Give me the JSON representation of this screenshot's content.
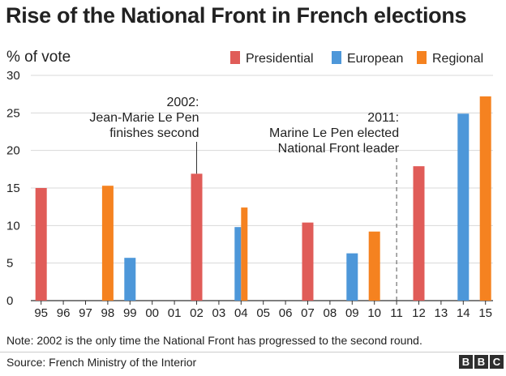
{
  "title": "Rise of the National Front in French elections",
  "note": "Note: 2002 is the only time the National Front has progressed to the second round.",
  "source": "Source: French Ministry of the Interior",
  "logo": [
    "B",
    "B",
    "C"
  ],
  "colors": {
    "Presidential": "#e05c58",
    "European": "#4d97d9",
    "Regional": "#f58220",
    "gridline": "#d8d8d8",
    "text": "#222222"
  },
  "chart_data": {
    "type": "bar",
    "ylabel": "% of vote",
    "ylim": [
      0,
      30
    ],
    "yticks": [
      0,
      5,
      10,
      15,
      20,
      25,
      30
    ],
    "grid": true,
    "legend_position": "top-right",
    "categories": [
      "95",
      "96",
      "97",
      "98",
      "99",
      "00",
      "01",
      "02",
      "03",
      "04",
      "05",
      "06",
      "07",
      "08",
      "09",
      "10",
      "11",
      "12",
      "13",
      "14",
      "15"
    ],
    "series": [
      {
        "name": "Presidential",
        "points": [
          {
            "x": "95",
            "value": 15.0
          },
          {
            "x": "02",
            "value": 16.9
          },
          {
            "x": "07",
            "value": 10.4
          },
          {
            "x": "12",
            "value": 17.9
          }
        ]
      },
      {
        "name": "European",
        "points": [
          {
            "x": "99",
            "value": 5.7
          },
          {
            "x": "04",
            "value": 9.8
          },
          {
            "x": "09",
            "value": 6.3
          },
          {
            "x": "14",
            "value": 24.9
          }
        ]
      },
      {
        "name": "Regional",
        "points": [
          {
            "x": "98",
            "value": 15.3
          },
          {
            "x": "04",
            "value": 12.4
          },
          {
            "x": "10",
            "value": 9.2
          },
          {
            "x": "15",
            "value": 27.2
          }
        ]
      }
    ],
    "annotations": [
      {
        "x": "02",
        "lines": [
          "2002:",
          "Jean-Marie Le Pen",
          "finishes second"
        ]
      },
      {
        "x": "11",
        "lines": [
          "2011:",
          "Marine Le Pen elected",
          "National Front leader"
        ]
      }
    ]
  }
}
